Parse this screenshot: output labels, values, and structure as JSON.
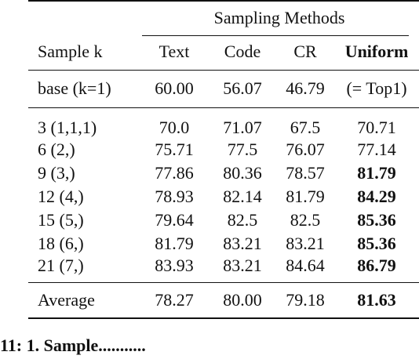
{
  "table": {
    "group_header": "Sampling Methods",
    "row_header": "Sample k",
    "columns": [
      "Text",
      "Code",
      "CR",
      "Uniform"
    ],
    "base_row": {
      "label": "base (k=1)",
      "values": [
        "60.00",
        "56.07",
        "46.79",
        "(= Top1)"
      ]
    },
    "rows": [
      {
        "label": "3 (1,1,1)",
        "values": [
          "70.0",
          "71.07",
          "67.5",
          "70.71"
        ]
      },
      {
        "label": "6 (2,)",
        "values": [
          "75.71",
          "77.5",
          "76.07",
          "77.14"
        ]
      },
      {
        "label": "9 (3,)",
        "values": [
          "77.86",
          "80.36",
          "78.57",
          "81.79"
        ]
      },
      {
        "label": "12 (4,)",
        "values": [
          "78.93",
          "82.14",
          "81.79",
          "84.29"
        ]
      },
      {
        "label": "15 (5,)",
        "values": [
          "79.64",
          "82.5",
          "82.5",
          "85.36"
        ]
      },
      {
        "label": "18 (6,)",
        "values": [
          "81.79",
          "83.21",
          "83.21",
          "85.36"
        ]
      },
      {
        "label": "21 (7,)",
        "values": [
          "83.93",
          "83.21",
          "84.64",
          "86.79"
        ]
      }
    ],
    "average_row": {
      "label": "Average",
      "values": [
        "78.27",
        "80.00",
        "79.18",
        "81.63"
      ]
    }
  },
  "caption_fragment": "11: 1. Sample..........."
}
